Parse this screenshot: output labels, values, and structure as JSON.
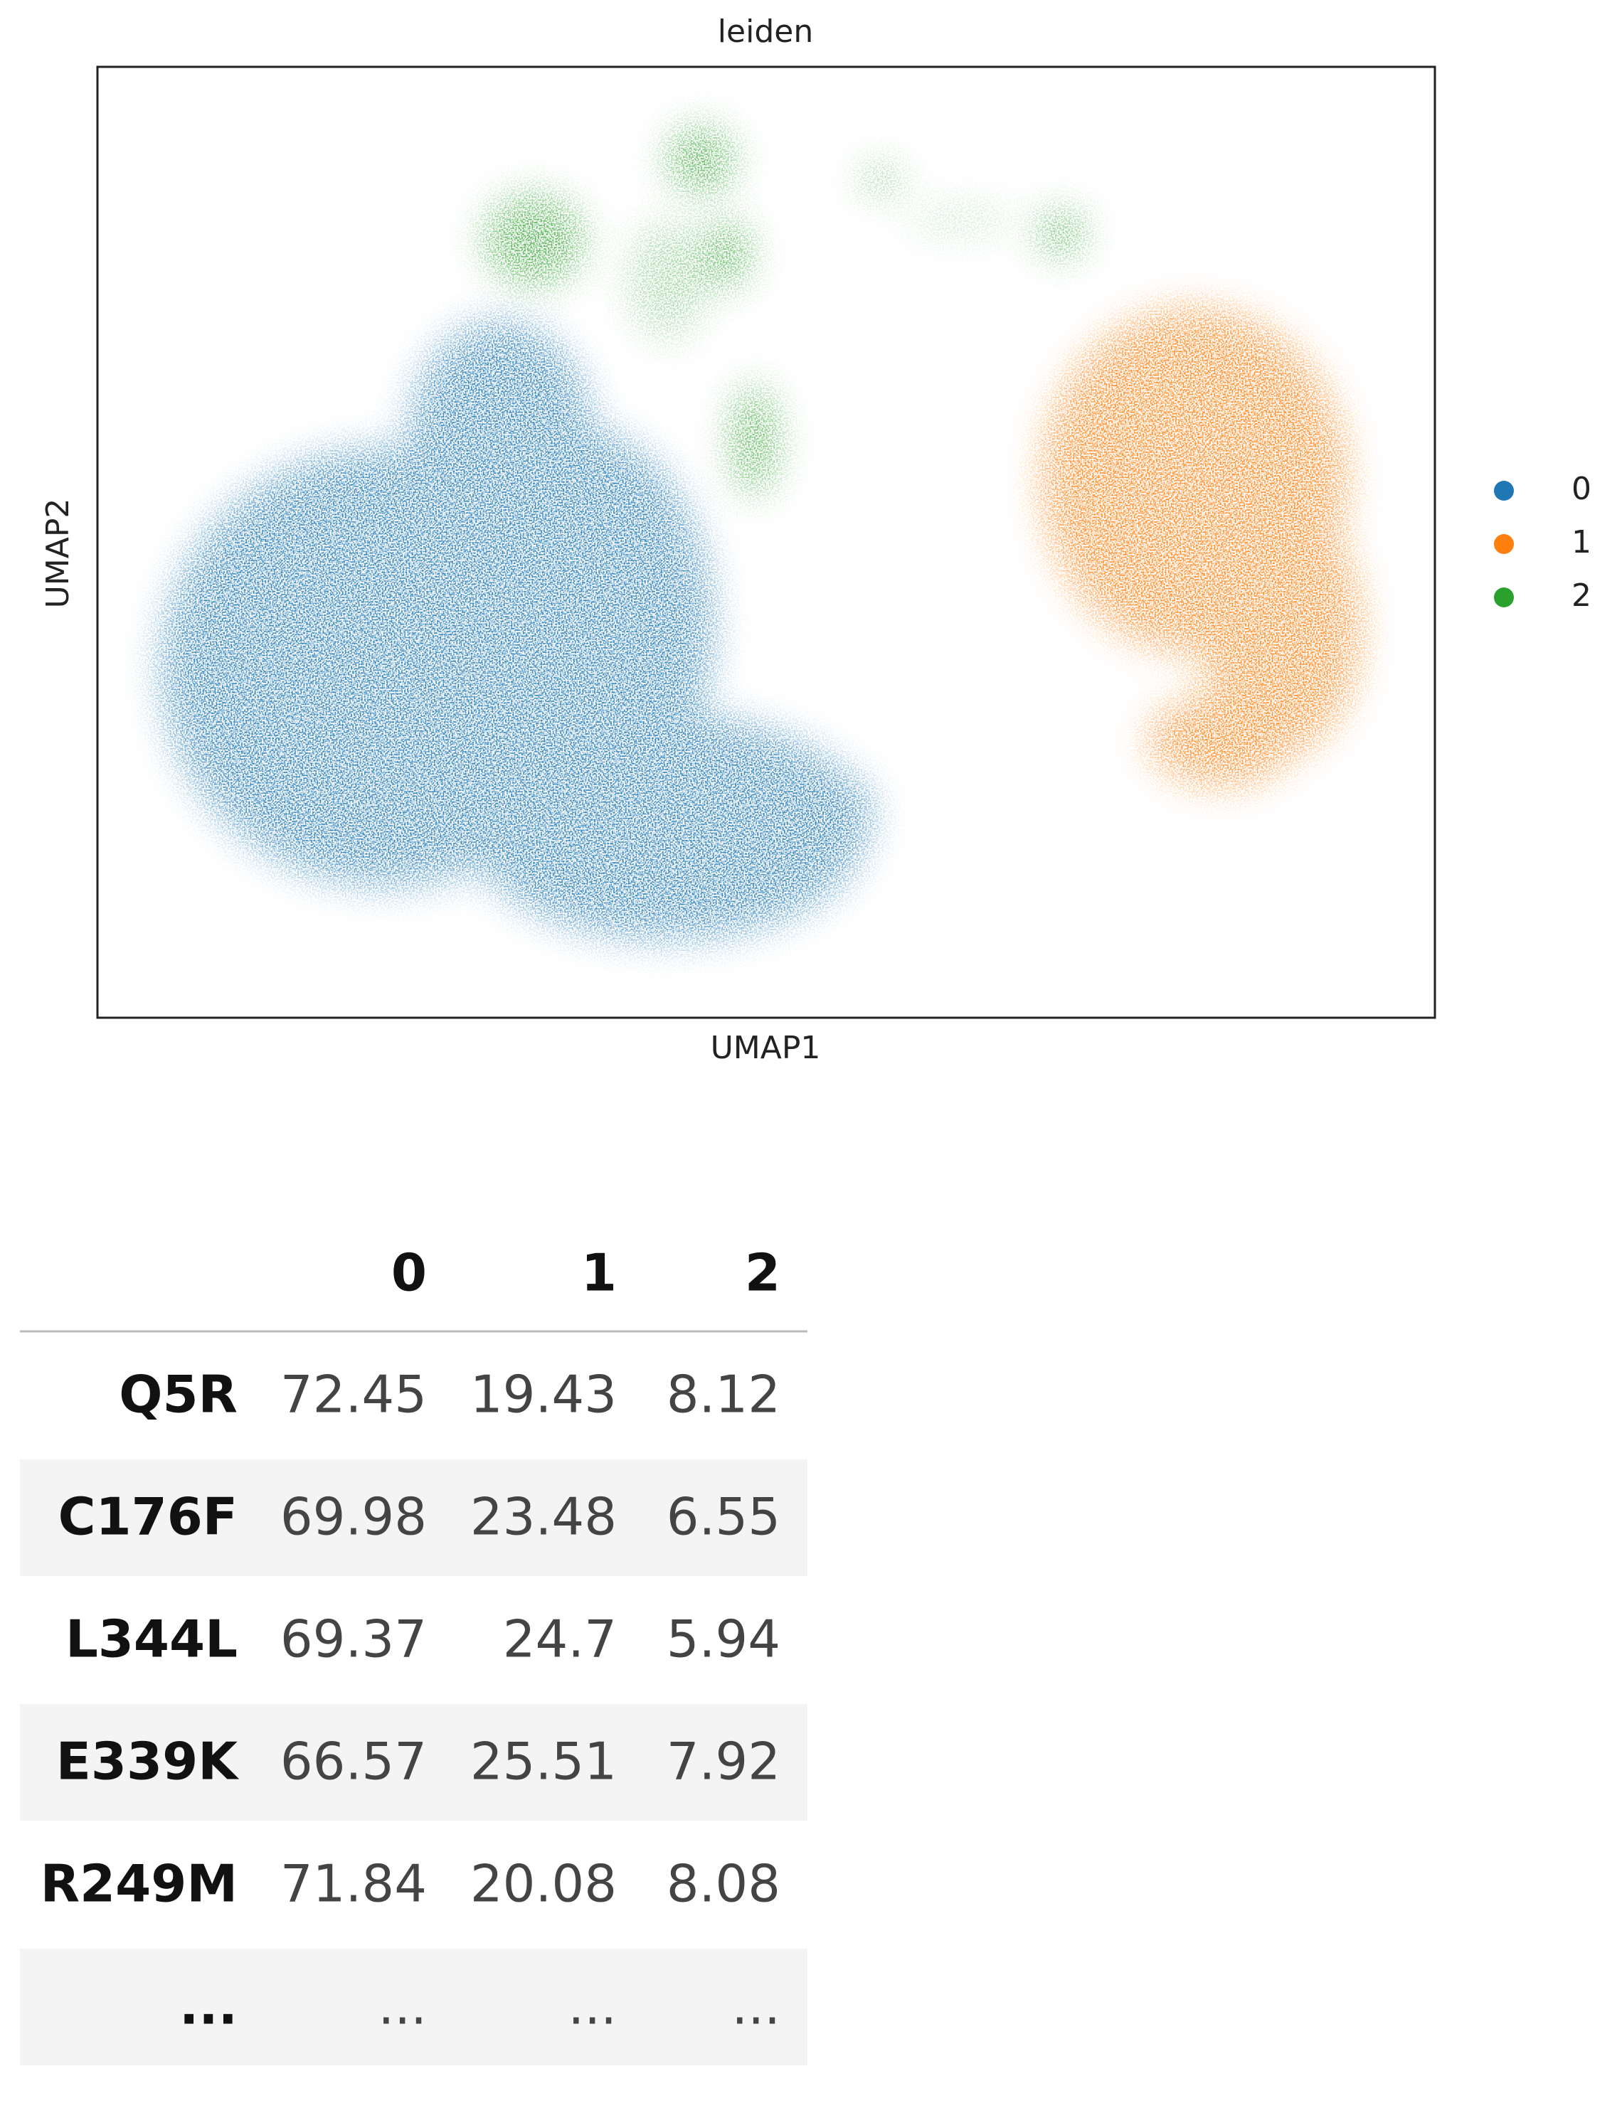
{
  "plot": {
    "title": "leiden",
    "xlabel": "UMAP1",
    "ylabel": "UMAP2",
    "legend": [
      {
        "label": "0",
        "color": "#1f77b4"
      },
      {
        "label": "1",
        "color": "#ff7f0e"
      },
      {
        "label": "2",
        "color": "#2ca02c"
      }
    ]
  },
  "table": {
    "columns": [
      "0",
      "1",
      "2"
    ],
    "rows": [
      [
        "Q5R",
        72.45,
        19.43,
        8.12
      ],
      [
        "C176F",
        69.98,
        23.48,
        6.55
      ],
      [
        "L344L",
        69.37,
        24.7,
        5.94
      ],
      [
        "E339K",
        66.57,
        25.51,
        7.92
      ],
      [
        "R249M",
        71.84,
        20.08,
        8.08
      ],
      [
        "...",
        "...",
        "...",
        "..."
      ]
    ]
  }
}
